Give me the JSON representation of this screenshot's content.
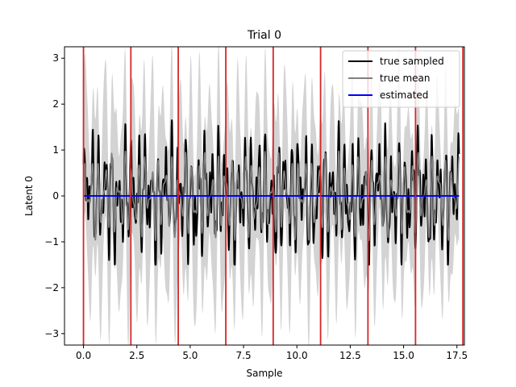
{
  "chart_data": {
    "type": "line",
    "title": "Trial 0",
    "xlabel": "Sample",
    "ylabel": "Latent 0",
    "xlim": [
      -0.89,
      17.85
    ],
    "ylim": [
      -3.25,
      3.25
    ],
    "xticks": [
      0.0,
      2.5,
      5.0,
      7.5,
      10.0,
      12.5,
      15.0,
      17.5
    ],
    "xtick_labels": [
      "0.0",
      "2.5",
      "5.0",
      "7.5",
      "10.0",
      "12.5",
      "15.0",
      "17.5"
    ],
    "yticks": [
      -3,
      -2,
      -1,
      0,
      1,
      2,
      3
    ],
    "ytick_labels": [
      "−3",
      "−2",
      "−1",
      "0",
      "1",
      "2",
      "3"
    ],
    "grid": false,
    "legend_position": "top-right",
    "x_range": [
      0.0,
      17.6
    ],
    "vertical_lines": {
      "color": "#d62728",
      "x": [
        0.0,
        2.22,
        4.44,
        6.67,
        8.89,
        11.11,
        13.33,
        15.56,
        17.78
      ]
    },
    "band": {
      "color": "#d3d3d3",
      "description_values": {
        "upper_envelope_peaks_start": 2.9,
        "upper_envelope_peaks_end": 2.4,
        "lower_envelope_troughs_start": -2.95,
        "lower_envelope_troughs_end": -2.2
      }
    },
    "series": [
      {
        "name": "true sampled",
        "color": "#000000",
        "amplitude_range": [
          -1.5,
          1.65
        ]
      },
      {
        "name": "true mean",
        "color": "#808080",
        "amplitude_range": [
          -1.0,
          1.0
        ]
      },
      {
        "name": "estimated",
        "color": "#0000ff",
        "values_constant": 0.0
      }
    ]
  }
}
